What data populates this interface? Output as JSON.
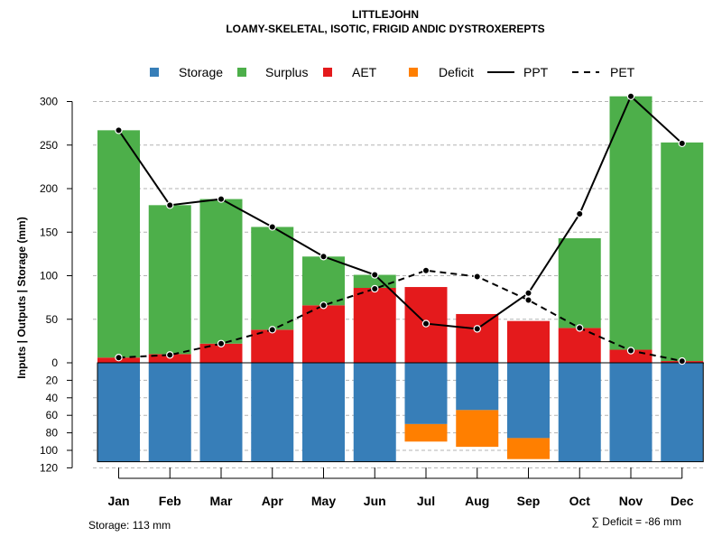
{
  "chart_data": {
    "type": "bar",
    "title": "LITTLEJOHN",
    "subtitle": "LOAMY-SKELETAL, ISOTIC, FRIGID ANDIC DYSTROXEREPTS",
    "ylabel": "Inputs | Outputs | Storage    (mm)",
    "ylim_upper": [
      0,
      320
    ],
    "ylim_lower": [
      0,
      120
    ],
    "upper_ticks": [
      0,
      50,
      100,
      150,
      200,
      250,
      300
    ],
    "lower_ticks": [
      0,
      20,
      40,
      60,
      80,
      100,
      120
    ],
    "grid": true,
    "legend_position": "top",
    "categories": [
      "Jan",
      "Feb",
      "Mar",
      "Apr",
      "May",
      "Jun",
      "Jul",
      "Aug",
      "Sep",
      "Oct",
      "Nov",
      "Dec"
    ],
    "series": [
      {
        "name": "Storage",
        "color": "#377EB8",
        "values": [
          113,
          113,
          113,
          113,
          113,
          113,
          70,
          54,
          86,
          113,
          113,
          113
        ]
      },
      {
        "name": "Surplus",
        "color": "#4DAF4A",
        "values": [
          261,
          171,
          166,
          118,
          56,
          15,
          0,
          0,
          0,
          103,
          291,
          251
        ]
      },
      {
        "name": "AET",
        "color": "#E41A1C",
        "values": [
          6,
          10,
          22,
          38,
          66,
          86,
          87,
          56,
          48,
          40,
          15,
          2
        ]
      },
      {
        "name": "Deficit",
        "color": "#FF7F00",
        "values": [
          0,
          0,
          0,
          0,
          0,
          0,
          20,
          42,
          24,
          0,
          0,
          0
        ]
      },
      {
        "name": "PPT",
        "color": "#000000",
        "style": "solid",
        "values": [
          267,
          181,
          188,
          156,
          122,
          101,
          45,
          39,
          80,
          171,
          306,
          252
        ]
      },
      {
        "name": "PET",
        "color": "#000000",
        "style": "dashed",
        "values": [
          6,
          9,
          22,
          38,
          66,
          85,
          106,
          99,
          72,
          40,
          14,
          2
        ]
      }
    ],
    "footer_left": "Storage: 113 mm",
    "footer_right": "∑ Deficit = -86 mm"
  }
}
